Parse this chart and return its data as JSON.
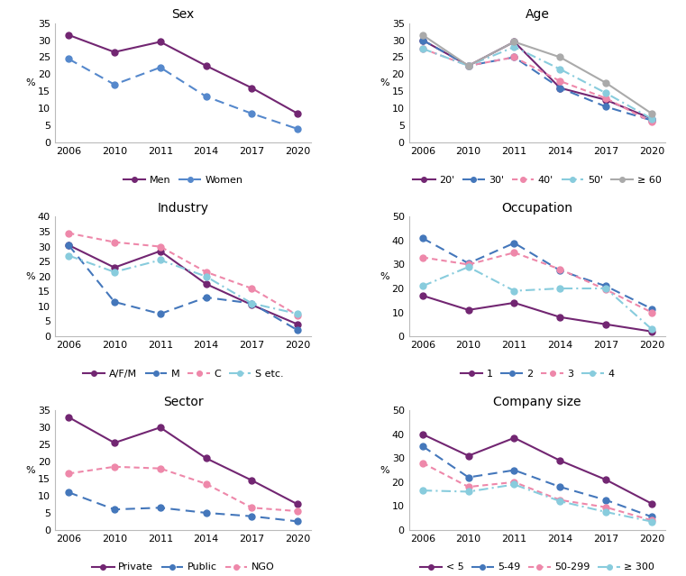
{
  "years": [
    2006,
    2010,
    2011,
    2014,
    2017,
    2020
  ],
  "x_positions": [
    0,
    1,
    2,
    3,
    4,
    5
  ],
  "panels": {
    "Sex": {
      "title": "Sex",
      "ylim": [
        0,
        35
      ],
      "yticks": [
        0,
        5,
        10,
        15,
        20,
        25,
        30,
        35
      ],
      "series": {
        "Men": {
          "values": [
            31.5,
            26.5,
            29.5,
            22.5,
            16.0,
            8.5
          ],
          "color": "#722672",
          "dashes": null
        },
        "Women": {
          "values": [
            24.5,
            17.0,
            22.0,
            13.5,
            8.5,
            4.0
          ],
          "color": "#5588CC",
          "dashes": [
            5,
            3
          ]
        }
      }
    },
    "Age": {
      "title": "Age",
      "ylim": [
        0,
        35
      ],
      "yticks": [
        0,
        5,
        10,
        15,
        20,
        25,
        30,
        35
      ],
      "series": {
        "20'": {
          "values": [
            30.0,
            22.5,
            29.5,
            16.0,
            12.5,
            7.0
          ],
          "color": "#722672",
          "dashes": null
        },
        "30'": {
          "values": [
            30.0,
            22.5,
            25.0,
            16.0,
            10.5,
            6.5
          ],
          "color": "#4477BB",
          "dashes": [
            5,
            3
          ]
        },
        "40'": {
          "values": [
            27.5,
            22.5,
            25.0,
            18.0,
            13.0,
            6.0
          ],
          "color": "#EE88AA",
          "dashes": [
            3,
            2
          ]
        },
        "50'": {
          "values": [
            27.5,
            22.5,
            28.0,
            21.5,
            14.5,
            7.0
          ],
          "color": "#88CCDD",
          "dashes": [
            5,
            2,
            1,
            2
          ]
        },
        "≥ 60": {
          "values": [
            31.5,
            22.5,
            29.5,
            25.0,
            17.5,
            8.5
          ],
          "color": "#AAAAAA",
          "dashes": null
        }
      }
    },
    "Industry": {
      "title": "Industry",
      "ylim": [
        0,
        40
      ],
      "yticks": [
        0,
        5,
        10,
        15,
        20,
        25,
        30,
        35,
        40
      ],
      "series": {
        "A/F/M": {
          "values": [
            30.5,
            23.0,
            28.5,
            17.5,
            10.5,
            4.0
          ],
          "color": "#722672",
          "dashes": null
        },
        "M": {
          "values": [
            30.5,
            11.5,
            7.5,
            13.0,
            11.0,
            2.0
          ],
          "color": "#4477BB",
          "dashes": [
            5,
            3
          ]
        },
        "C": {
          "values": [
            34.5,
            31.5,
            30.0,
            21.5,
            16.0,
            7.0
          ],
          "color": "#EE88AA",
          "dashes": [
            3,
            2
          ]
        },
        "S etc.": {
          "values": [
            27.0,
            21.5,
            25.5,
            20.0,
            11.0,
            7.5
          ],
          "color": "#88CCDD",
          "dashes": [
            5,
            2,
            1,
            2
          ]
        }
      }
    },
    "Occupation": {
      "title": "Occupation",
      "ylim": [
        0,
        50
      ],
      "yticks": [
        0,
        10,
        20,
        30,
        40,
        50
      ],
      "series": {
        "1": {
          "values": [
            17.0,
            11.0,
            14.0,
            8.0,
            5.0,
            2.0
          ],
          "color": "#722672",
          "dashes": null
        },
        "2": {
          "values": [
            41.0,
            30.5,
            39.0,
            27.5,
            21.0,
            11.5
          ],
          "color": "#4477BB",
          "dashes": [
            5,
            3
          ]
        },
        "3": {
          "values": [
            33.0,
            30.0,
            35.0,
            28.0,
            19.5,
            10.0
          ],
          "color": "#EE88AA",
          "dashes": [
            3,
            2
          ]
        },
        "4": {
          "values": [
            21.0,
            29.0,
            19.0,
            20.0,
            20.0,
            3.0
          ],
          "color": "#88CCDD",
          "dashes": [
            5,
            2,
            1,
            2
          ]
        }
      }
    },
    "Sector": {
      "title": "Sector",
      "ylim": [
        0,
        35
      ],
      "yticks": [
        0,
        5,
        10,
        15,
        20,
        25,
        30,
        35
      ],
      "series": {
        "Private": {
          "values": [
            33.0,
            25.5,
            30.0,
            21.0,
            14.5,
            7.5
          ],
          "color": "#722672",
          "dashes": null
        },
        "Public": {
          "values": [
            11.0,
            6.0,
            6.5,
            5.0,
            4.0,
            2.5
          ],
          "color": "#4477BB",
          "dashes": [
            5,
            3
          ]
        },
        "NGO": {
          "values": [
            16.5,
            18.5,
            18.0,
            13.5,
            6.5,
            5.5
          ],
          "color": "#EE88AA",
          "dashes": [
            3,
            2
          ]
        }
      }
    },
    "Company size": {
      "title": "Company size",
      "ylim": [
        0,
        50
      ],
      "yticks": [
        0,
        10,
        20,
        30,
        40,
        50
      ],
      "series": {
        "< 5": {
          "values": [
            40.0,
            31.0,
            38.5,
            29.0,
            21.0,
            11.0
          ],
          "color": "#722672",
          "dashes": null
        },
        "5-49": {
          "values": [
            35.0,
            22.0,
            25.0,
            18.0,
            12.5,
            5.5
          ],
          "color": "#4477BB",
          "dashes": [
            5,
            3
          ]
        },
        "50-299": {
          "values": [
            28.0,
            18.0,
            20.0,
            12.5,
            9.5,
            4.0
          ],
          "color": "#EE88AA",
          "dashes": [
            3,
            2
          ]
        },
        "≥ 300": {
          "values": [
            16.5,
            16.0,
            19.0,
            12.0,
            7.5,
            3.5
          ],
          "color": "#88CCDD",
          "dashes": [
            5,
            2,
            1,
            2
          ]
        }
      }
    }
  },
  "panel_order": [
    "Sex",
    "Age",
    "Industry",
    "Occupation",
    "Sector",
    "Company size"
  ],
  "ylabel": "%",
  "background_color": "#ffffff",
  "line_width": 1.5,
  "marker_size": 5,
  "title_fontsize": 10,
  "label_fontsize": 8,
  "tick_fontsize": 8,
  "legend_fontsize": 8
}
